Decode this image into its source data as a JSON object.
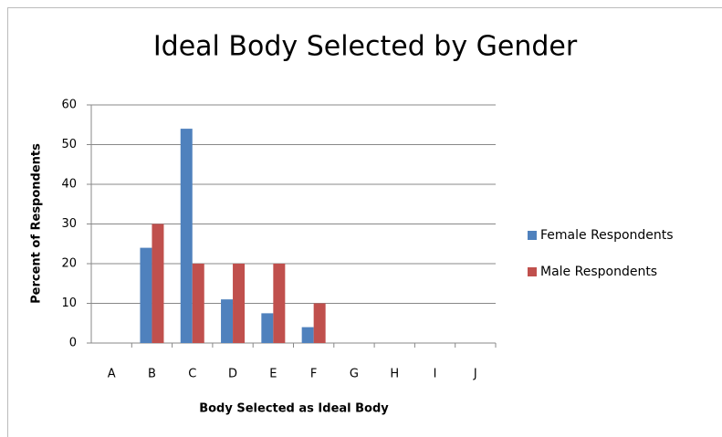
{
  "chart_data": {
    "type": "bar",
    "title": "Ideal Body Selected by Gender",
    "x_label": "Body Selected as Ideal Body",
    "y_label": "Percent of Respondents",
    "categories": [
      "A",
      "B",
      "C",
      "D",
      "E",
      "F",
      "G",
      "H",
      "I",
      "J"
    ],
    "series": [
      {
        "name": "Female Respondents",
        "color": "#4f81bd",
        "values": [
          0,
          24,
          54,
          11,
          7.5,
          4,
          0,
          0,
          0,
          0
        ]
      },
      {
        "name": "Male Respondents",
        "color": "#c0504d",
        "values": [
          0,
          30,
          20,
          20,
          20,
          10,
          0,
          0,
          0,
          0
        ]
      }
    ],
    "ylim": [
      0,
      60
    ],
    "yticks": [
      0,
      10,
      20,
      30,
      40,
      50,
      60
    ],
    "grid": true,
    "legend": "right"
  }
}
